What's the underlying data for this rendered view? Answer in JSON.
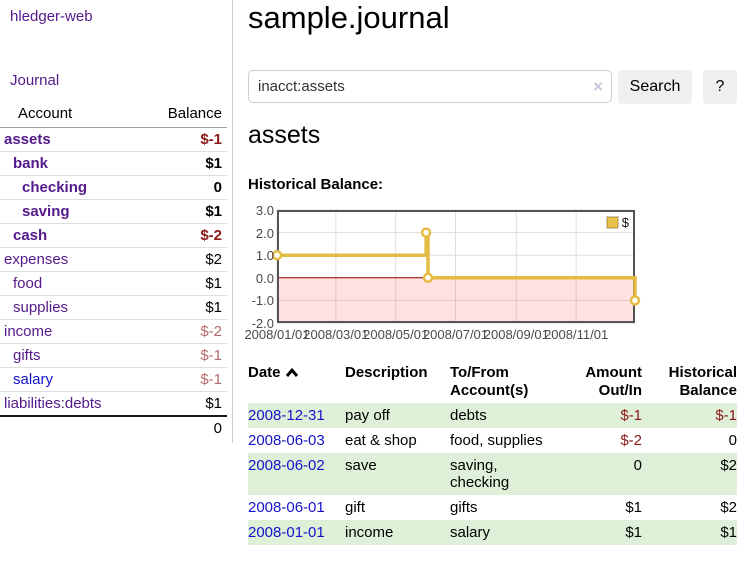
{
  "app": {
    "title": "hledger-web"
  },
  "colors": {
    "link_purple": "#551a8b",
    "link_blue": "#1414cc",
    "negative_strong": "#8b1717",
    "negative_muted": "#b36b6b",
    "row_green": "#dff0d8",
    "series_gold": "#e5bc43",
    "chart_border": "#545454",
    "zero_line": "#8b0000"
  },
  "sidebar": {
    "journal_label": "Journal",
    "table": {
      "account_header": "Account",
      "balance_header": "Balance",
      "rows": [
        {
          "name": "assets",
          "indent": 0,
          "bold": true,
          "balance": "$-1",
          "balance_color": "negative",
          "link_color": "purple"
        },
        {
          "name": "bank",
          "indent": 1,
          "bold": true,
          "balance": "$1",
          "balance_color": "default",
          "link_color": "purple"
        },
        {
          "name": "checking",
          "indent": 2,
          "bold": true,
          "balance": "0",
          "balance_color": "default",
          "link_color": "purple"
        },
        {
          "name": "saving",
          "indent": 2,
          "bold": true,
          "balance": "$1",
          "balance_color": "default",
          "link_color": "purple"
        },
        {
          "name": "cash",
          "indent": 1,
          "bold": true,
          "balance": "$-2",
          "balance_color": "negative",
          "link_color": "purple"
        },
        {
          "name": "expenses",
          "indent": 0,
          "bold": false,
          "balance": "$2",
          "balance_color": "default",
          "link_color": "purple"
        },
        {
          "name": "food",
          "indent": 1,
          "bold": false,
          "balance": "$1",
          "balance_color": "default",
          "link_color": "purple"
        },
        {
          "name": "supplies",
          "indent": 1,
          "bold": false,
          "balance": "$1",
          "balance_color": "default",
          "link_color": "purple"
        },
        {
          "name": "income",
          "indent": 0,
          "bold": false,
          "balance": "$-2",
          "balance_color": "negative-muted",
          "link_color": "purple"
        },
        {
          "name": "gifts",
          "indent": 1,
          "bold": false,
          "balance": "$-1",
          "balance_color": "negative-muted",
          "link_color": "purple"
        },
        {
          "name": "salary",
          "indent": 1,
          "bold": false,
          "balance": "$-1",
          "balance_color": "negative-muted",
          "link_color": "blue"
        },
        {
          "name": "liabilities:debts",
          "indent": 0,
          "bold": false,
          "balance": "$1",
          "balance_color": "default",
          "link_color": "purple"
        }
      ],
      "total": "0"
    }
  },
  "main": {
    "title": "sample.journal",
    "search": {
      "value": "inacct:assets",
      "clear_icon": "×",
      "button_label": "Search",
      "help_label": "?"
    },
    "account_heading": "assets",
    "chart_heading": "Historical Balance:"
  },
  "chart_data": {
    "type": "line",
    "step": true,
    "title": "Historical Balance:",
    "series": [
      {
        "name": "$",
        "color": "#e5bc43",
        "points": [
          {
            "date": "2008-01-01",
            "value": 1
          },
          {
            "date": "2008-06-01",
            "value": 2
          },
          {
            "date": "2008-06-03",
            "value": 0
          },
          {
            "date": "2008-12-31",
            "value": -1
          }
        ]
      }
    ],
    "x_range": {
      "min": "2008-01-01",
      "max": "2008-12-31"
    },
    "y_range": {
      "min": -2,
      "max": 3
    },
    "y_ticks": [
      3,
      2,
      1,
      0,
      -1,
      -2
    ],
    "y_tick_labels": [
      "3.0",
      "2.0",
      "1.0",
      "0.0",
      "-1.0",
      "-2.0"
    ],
    "x_ticks": [
      "2008-01-01",
      "2008-03-01",
      "2008-05-01",
      "2008-07-01",
      "2008-09-01",
      "2008-11-01"
    ],
    "x_tick_labels": [
      "2008/01/01",
      "2008/03/01",
      "2008/05/01",
      "2008/07/01",
      "2008/09/01",
      "2008/11/01"
    ],
    "grid_on": true,
    "grid_color": "#dedede",
    "border_color": "#545454",
    "zero_line_color": "#8b0000",
    "negative_region_color": "rgba(255,70,70,0.16)",
    "legend": {
      "position": "top-right",
      "label": "$",
      "swatch_color": "#e8c24a"
    }
  },
  "register": {
    "headers": {
      "date": "Date",
      "description": "Description",
      "accounts1": "To/From",
      "accounts2": "Account(s)",
      "amount1": "Amount",
      "amount2": "Out/In",
      "balance1": "Historical",
      "balance2": "Balance"
    },
    "sort": "ascending",
    "rows": [
      {
        "date": "2008-12-31",
        "description": "pay off",
        "accounts": "debts",
        "amount": "$-1",
        "amount_negative": true,
        "balance": "$-1",
        "balance_negative": true,
        "shaded": true
      },
      {
        "date": "2008-06-03",
        "description": "eat & shop",
        "accounts": "food, supplies",
        "amount": "$-2",
        "amount_negative": true,
        "balance": "0",
        "balance_negative": false,
        "shaded": false
      },
      {
        "date": "2008-06-02",
        "description": "save",
        "accounts": "saving, checking",
        "amount": "0",
        "amount_negative": false,
        "balance": "$2",
        "balance_negative": false,
        "shaded": true
      },
      {
        "date": "2008-06-01",
        "description": "gift",
        "accounts": "gifts",
        "amount": "$1",
        "amount_negative": false,
        "balance": "$2",
        "balance_negative": false,
        "shaded": false
      },
      {
        "date": "2008-01-01",
        "description": "income",
        "accounts": "salary",
        "amount": "$1",
        "amount_negative": false,
        "balance": "$1",
        "balance_negative": false,
        "shaded": true
      }
    ]
  }
}
